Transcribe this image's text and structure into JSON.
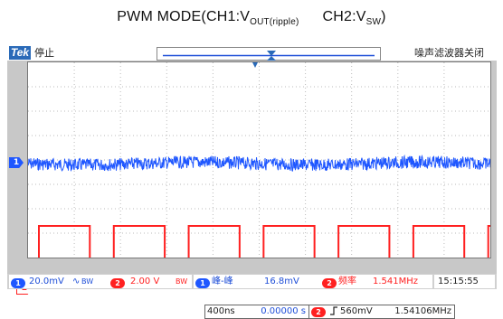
{
  "title": {
    "main": "PWM MODE(CH1:V",
    "sub1": "OUT(ripple)",
    "main2": "CH2:V",
    "sub2": "SW",
    "end": ")"
  },
  "header": {
    "brand": "Tek",
    "acq_state": "停止",
    "noise_filter": "噪声滤波器关闭"
  },
  "channels": {
    "ch1_label": "1",
    "ch2_label": "2",
    "ch1_color": "#1f57ff",
    "ch2_color": "#ff2020"
  },
  "timebase": {
    "scale": "400ns",
    "delay": "0.00000 s"
  },
  "trigger": {
    "channel": "2",
    "level": "560mV",
    "frequency": "1.54106MHz",
    "slope_icon": "rising-edge-icon"
  },
  "bottom": {
    "ch1_scale": "20.0mV",
    "ch1_coupling": "∿",
    "ch1_bw": "BW",
    "ch2_scale": "2.00 V",
    "ch2_bw": "BW",
    "meas1_name": "峰-峰",
    "meas1_value": "16.8mV",
    "meas2_name": "频率",
    "meas2_value": "1.541MHz",
    "time": "15:15:55"
  },
  "waveform": {
    "ch2_duty": 0.68,
    "ch2_period_div": 1.62,
    "time_per_div_ns": 400
  }
}
